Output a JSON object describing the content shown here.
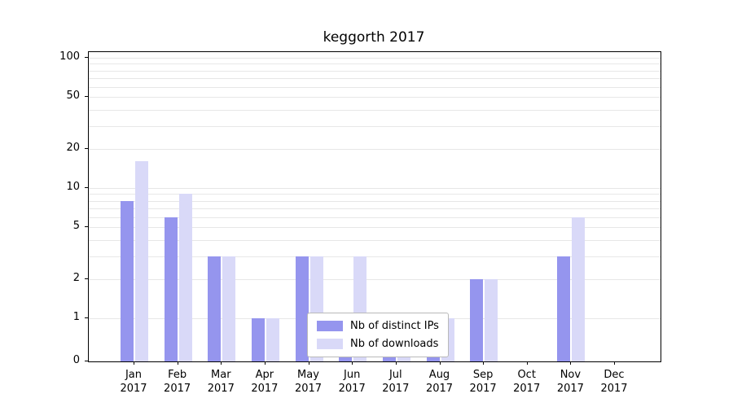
{
  "title": "keggorth 2017",
  "chart_data": {
    "type": "bar",
    "title": "keggorth 2017",
    "categories": [
      "Jan 2017",
      "Feb 2017",
      "Mar 2017",
      "Apr 2017",
      "May 2017",
      "Jun 2017",
      "Jul 2017",
      "Aug 2017",
      "Sep 2017",
      "Oct 2017",
      "Nov 2017",
      "Dec 2017"
    ],
    "series": [
      {
        "name": "Nb of distinct IPs",
        "color": "#9595ee",
        "values": [
          8,
          6,
          3,
          1,
          3,
          1,
          1,
          1,
          2,
          0,
          3,
          0
        ]
      },
      {
        "name": "Nb of downloads",
        "color": "#d9d9f8",
        "values": [
          16,
          9,
          3,
          1,
          3,
          3,
          1,
          1,
          2,
          0,
          6,
          0
        ]
      }
    ],
    "y_axis": {
      "scale": "symlog",
      "ticks": [
        0,
        1,
        2,
        5,
        10,
        20,
        50,
        100
      ],
      "range": [
        0,
        110
      ]
    },
    "x_axis": {
      "tick_year": "2017"
    },
    "grid": true,
    "legend": {
      "position": "inside-bottom-center",
      "background": "#ffffff",
      "border_color": "#b9b9b9"
    }
  },
  "colors": {
    "grid": "#e7e7e7",
    "axis": "#000000",
    "background": "#ffffff"
  }
}
